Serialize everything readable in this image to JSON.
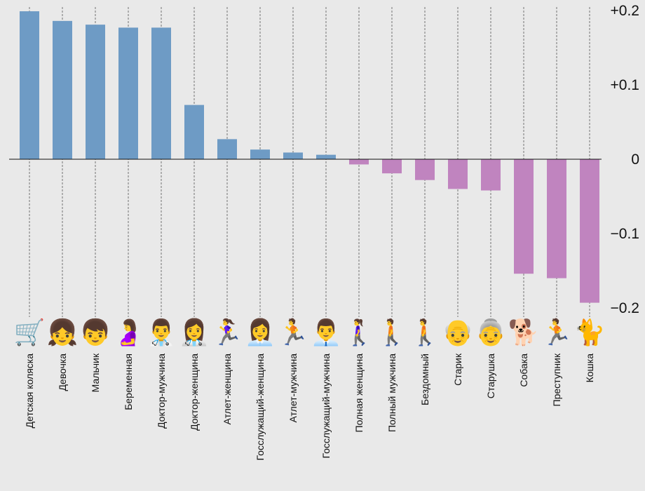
{
  "chart_data": {
    "type": "bar",
    "categories": [
      "Детская коляска",
      "Девочка",
      "Мальчик",
      "Беременная",
      "Доктор-мужчина",
      "Доктор-женщина",
      "Атлет-женщина",
      "Госслужащий-женщина",
      "Атлет-мужчина",
      "Госслужащий-мужчина",
      "Полная женщина",
      "Полный мужчина",
      "Бездомный",
      "Старик",
      "Старушка",
      "Собака",
      "Преступник",
      "Кошка"
    ],
    "icons": [
      "🛒",
      "👧",
      "👦",
      "🤰",
      "👨‍⚕️",
      "👩‍⚕️",
      "🏃‍♀️",
      "👩‍💼",
      "🏃",
      "👨‍💼",
      "🚶‍♀️",
      "🚶",
      "🚶",
      "👴",
      "👵",
      "🐕",
      "🏃",
      "🐈"
    ],
    "values": [
      0.199,
      0.186,
      0.181,
      0.177,
      0.177,
      0.073,
      0.027,
      0.013,
      0.009,
      0.006,
      -0.007,
      -0.019,
      -0.028,
      -0.04,
      -0.042,
      -0.154,
      -0.16,
      -0.193
    ],
    "ylim": [
      -0.2,
      0.2
    ],
    "yticks": [
      {
        "value": 0.2,
        "label": "+0.2"
      },
      {
        "value": 0.1,
        "label": "+0.1"
      },
      {
        "value": 0,
        "label": "0"
      },
      {
        "value": -0.1,
        "label": "−0.1"
      },
      {
        "value": -0.2,
        "label": "−0.2"
      }
    ],
    "colors": {
      "positive": "#6e9bc5",
      "negative": "#c084bf",
      "background": "#e9e9e9",
      "guide": "#555555",
      "axis": "#111111"
    },
    "grid": false
  }
}
